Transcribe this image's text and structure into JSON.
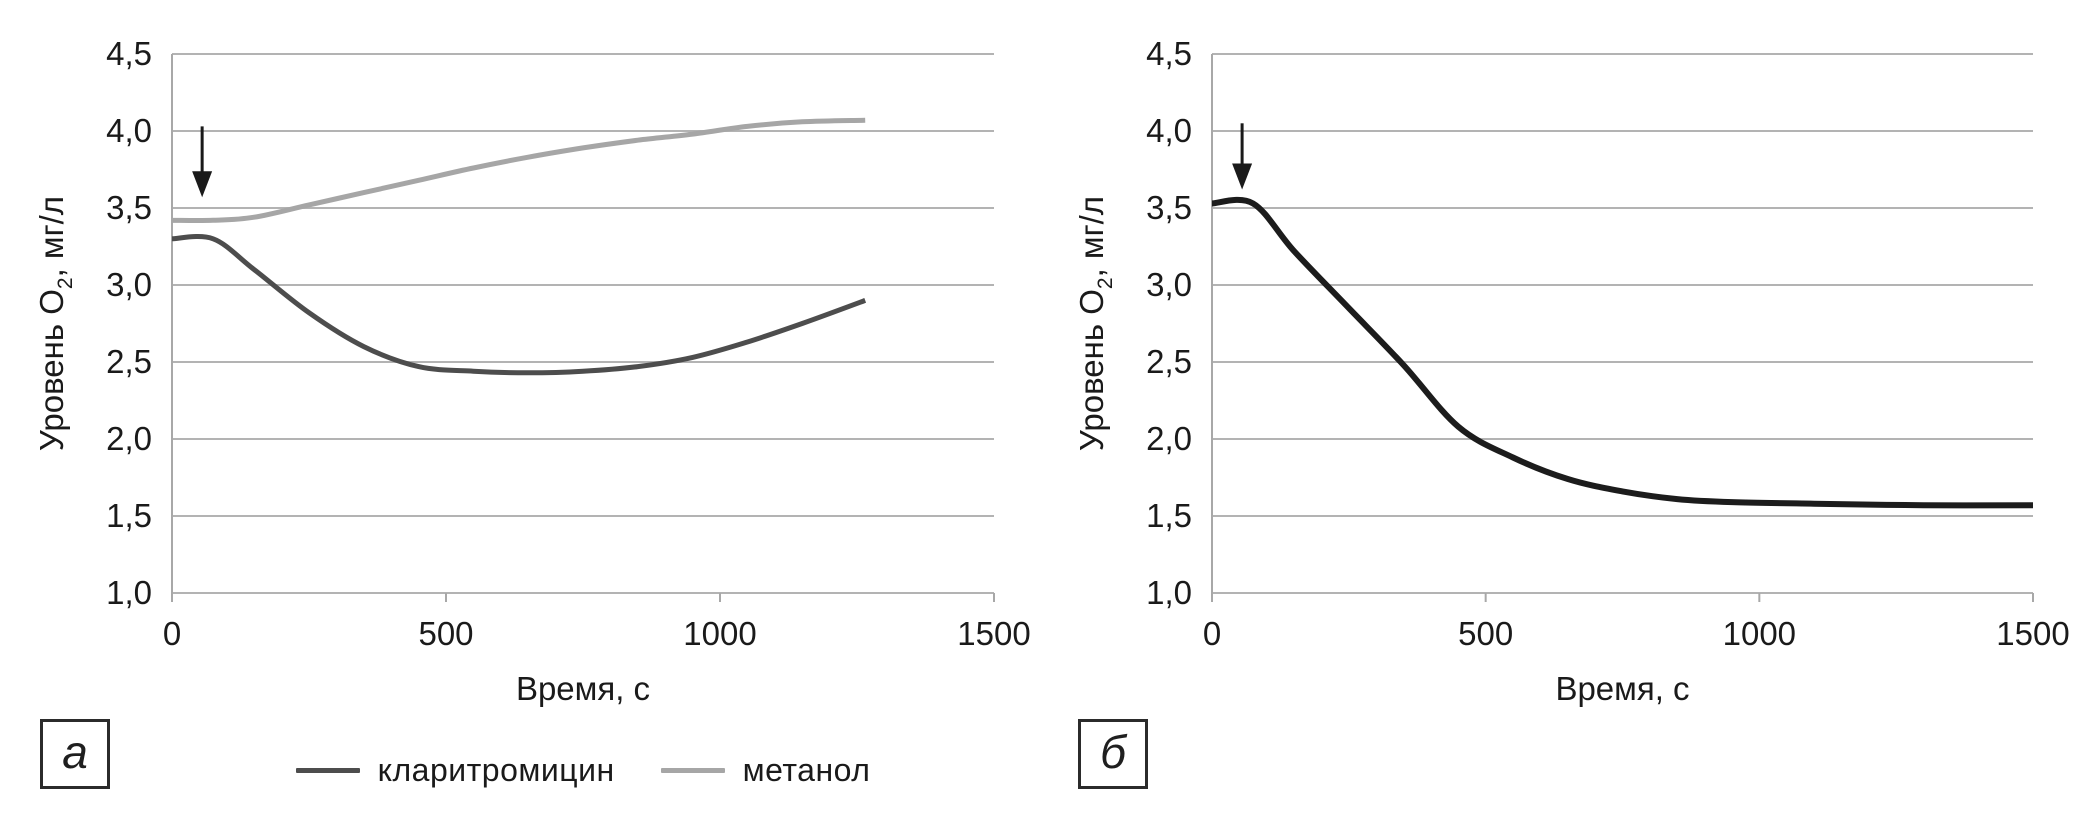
{
  "chart_data": [
    {
      "type": "line",
      "panel_label": "а",
      "xlabel": "Время, с",
      "ylabel": "Уровень О₂, мг/л",
      "ylabel_parts": {
        "pre": "Уровень О",
        "sub": "2",
        "post": ", мг/л"
      },
      "xlim": [
        0,
        1500
      ],
      "ylim": [
        1.0,
        4.5
      ],
      "xticks": [
        "0",
        "500",
        "1000",
        "1500"
      ],
      "xtick_values": [
        0,
        500,
        1000,
        1500
      ],
      "yticks": [
        "1,0",
        "1,5",
        "2,0",
        "2,5",
        "3,0",
        "3,5",
        "4,0",
        "4,5"
      ],
      "ytick_values": [
        1.0,
        1.5,
        2.0,
        2.5,
        3.0,
        3.5,
        4.0,
        4.5
      ],
      "grid": "horizontal",
      "legend_position": "bottom",
      "annotation_arrow": {
        "x": 55,
        "y_from": 4.03,
        "y_to": 3.57
      },
      "series": [
        {
          "name": "кларитромицин",
          "color": "#4d4d4d",
          "stroke_width": 5,
          "points": [
            [
              0,
              3.3
            ],
            [
              75,
              3.3
            ],
            [
              150,
              3.1
            ],
            [
              250,
              2.82
            ],
            [
              350,
              2.6
            ],
            [
              450,
              2.47
            ],
            [
              550,
              2.44
            ],
            [
              650,
              2.43
            ],
            [
              750,
              2.44
            ],
            [
              850,
              2.47
            ],
            [
              950,
              2.53
            ],
            [
              1050,
              2.63
            ],
            [
              1150,
              2.75
            ],
            [
              1265,
              2.9
            ]
          ]
        },
        {
          "name": "метанол",
          "color": "#a6a6a6",
          "stroke_width": 5,
          "points": [
            [
              0,
              3.42
            ],
            [
              75,
              3.42
            ],
            [
              150,
              3.44
            ],
            [
              250,
              3.52
            ],
            [
              350,
              3.6
            ],
            [
              450,
              3.68
            ],
            [
              550,
              3.76
            ],
            [
              650,
              3.83
            ],
            [
              750,
              3.89
            ],
            [
              850,
              3.94
            ],
            [
              950,
              3.98
            ],
            [
              1050,
              4.03
            ],
            [
              1150,
              4.06
            ],
            [
              1265,
              4.07
            ]
          ]
        }
      ]
    },
    {
      "type": "line",
      "panel_label": "б",
      "xlabel": "Время, с",
      "ylabel": "Уровень О₂, мг/л",
      "ylabel_parts": {
        "pre": "Уровень О",
        "sub": "2",
        "post": ", мг/л"
      },
      "xlim": [
        0,
        1500
      ],
      "ylim": [
        1.0,
        4.5
      ],
      "xticks": [
        "0",
        "500",
        "1000",
        "1500"
      ],
      "xtick_values": [
        0,
        500,
        1000,
        1500
      ],
      "yticks": [
        "1,0",
        "1,5",
        "2,0",
        "2,5",
        "3,0",
        "3,5",
        "4,0",
        "4,5"
      ],
      "ytick_values": [
        1.0,
        1.5,
        2.0,
        2.5,
        3.0,
        3.5,
        4.0,
        4.5
      ],
      "grid": "horizontal",
      "legend_position": "none",
      "annotation_arrow": {
        "x": 55,
        "y_from": 4.05,
        "y_to": 3.62
      },
      "series": [
        {
          "color": "#1c1c1c",
          "stroke_width": 6,
          "points": [
            [
              0,
              3.53
            ],
            [
              75,
              3.53
            ],
            [
              150,
              3.22
            ],
            [
              250,
              2.85
            ],
            [
              350,
              2.48
            ],
            [
              450,
              2.08
            ],
            [
              550,
              1.88
            ],
            [
              650,
              1.74
            ],
            [
              750,
              1.66
            ],
            [
              850,
              1.61
            ],
            [
              950,
              1.59
            ],
            [
              1100,
              1.58
            ],
            [
              1300,
              1.57
            ],
            [
              1500,
              1.57
            ]
          ]
        }
      ]
    }
  ],
  "colors": {
    "gridline": "#b3b3b3",
    "axis": "#a8a8a8",
    "text": "#1a1a1a",
    "arrow": "#1a1a1a"
  }
}
